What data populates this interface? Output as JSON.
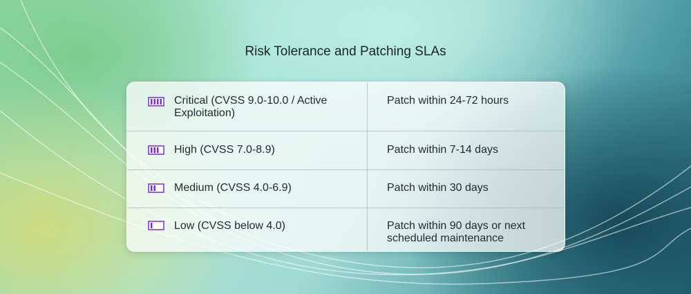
{
  "header": {
    "title": "Risk Tolerance and Patching SLAs"
  },
  "table": {
    "rows": [
      [
        "Critical (CVSS 9.0-10.0 / Active Exploitation)",
        "Patch within 24-72 hours"
      ],
      [
        "High (CVSS 7.0-8.9)",
        "Patch within 7-14 days"
      ],
      [
        "Medium (CVSS 4.0-6.9)",
        "Patch within 30 days"
      ],
      [
        "Low (CVSS below 4.0)",
        "Patch within 90 days or next scheduled maintenance"
      ]
    ]
  }
}
